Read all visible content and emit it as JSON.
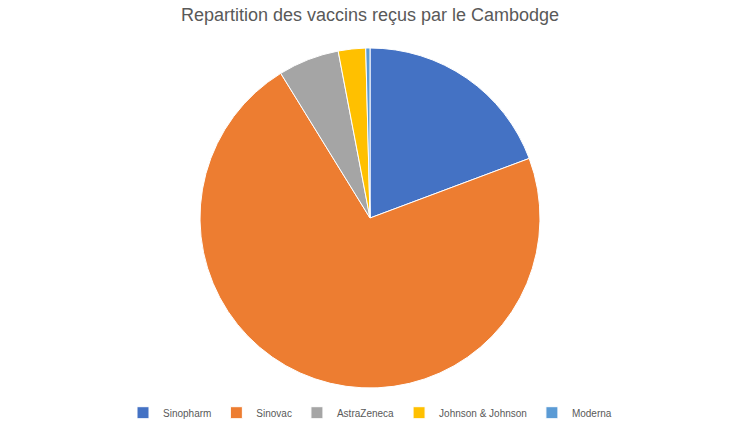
{
  "chart_data": {
    "type": "pie",
    "title": "Repartition des vaccins reçus par le Cambodge",
    "categories": [
      "Sinopharm",
      "Sinovac",
      "AstraZeneca",
      "Johnson & Johnson",
      "Moderna"
    ],
    "values": [
      19.3,
      71.9,
      5.8,
      2.6,
      0.4
    ],
    "colors": [
      "#4472c4",
      "#ed7d31",
      "#a5a5a5",
      "#ffc000",
      "#5b9bd5"
    ],
    "legend": "bottom",
    "data_labels": false
  }
}
